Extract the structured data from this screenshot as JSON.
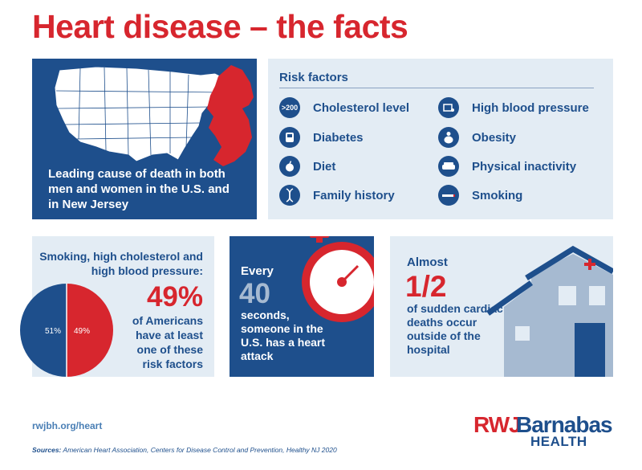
{
  "title": "Heart disease – the facts",
  "map_panel": {
    "text": "Leading cause of death in both men and women in the U.S. and in New Jersey"
  },
  "risk_factors": {
    "title": "Risk factors",
    "items": [
      {
        "label": "Cholesterol level",
        "icon": "cholesterol-icon",
        "icon_text": ">200"
      },
      {
        "label": "High blood pressure",
        "icon": "blood-pressure-cuff-icon",
        "icon_text": ""
      },
      {
        "label": "Diabetes",
        "icon": "glucose-meter-icon",
        "icon_text": ""
      },
      {
        "label": "Obesity",
        "icon": "obesity-icon",
        "icon_text": ""
      },
      {
        "label": "Diet",
        "icon": "apple-icon",
        "icon_text": ""
      },
      {
        "label": "Physical inactivity",
        "icon": "couch-icon",
        "icon_text": ""
      },
      {
        "label": "Family history",
        "icon": "dna-icon",
        "icon_text": ""
      },
      {
        "label": "Smoking",
        "icon": "cigarette-icon",
        "icon_text": ""
      }
    ]
  },
  "smoking_panel": {
    "heading": "Smoking, high cholesterol and high blood pressure:",
    "percent": "49%",
    "description": "of Americans have at least one of these risk factors",
    "pie": {
      "slices": [
        {
          "label": "51%",
          "value": 51,
          "color": "#1e4f8c"
        },
        {
          "label": "49%",
          "value": 49,
          "color": "#d7262e"
        }
      ]
    }
  },
  "every_panel": {
    "word": "Every",
    "number": "40",
    "description": "seconds, someone in the U.S. has a heart attack"
  },
  "almost_panel": {
    "word": "Almost",
    "fraction": "1/2",
    "description": "of sudden cardiac deaths occur outside of the hospital"
  },
  "footer": {
    "url": "rwjbh.org/heart",
    "sources_label": "Sources:",
    "sources_text": "American Heart Association, Centers for Disease Control and Prevention, Healthy NJ 2020"
  },
  "logo": {
    "rwj": "RWJ",
    "barnabas": "Barnabas",
    "health": "HEALTH"
  },
  "colors": {
    "brand_red": "#d7262e",
    "brand_navy": "#1e4f8c",
    "panel_light": "#e3ecf4"
  }
}
